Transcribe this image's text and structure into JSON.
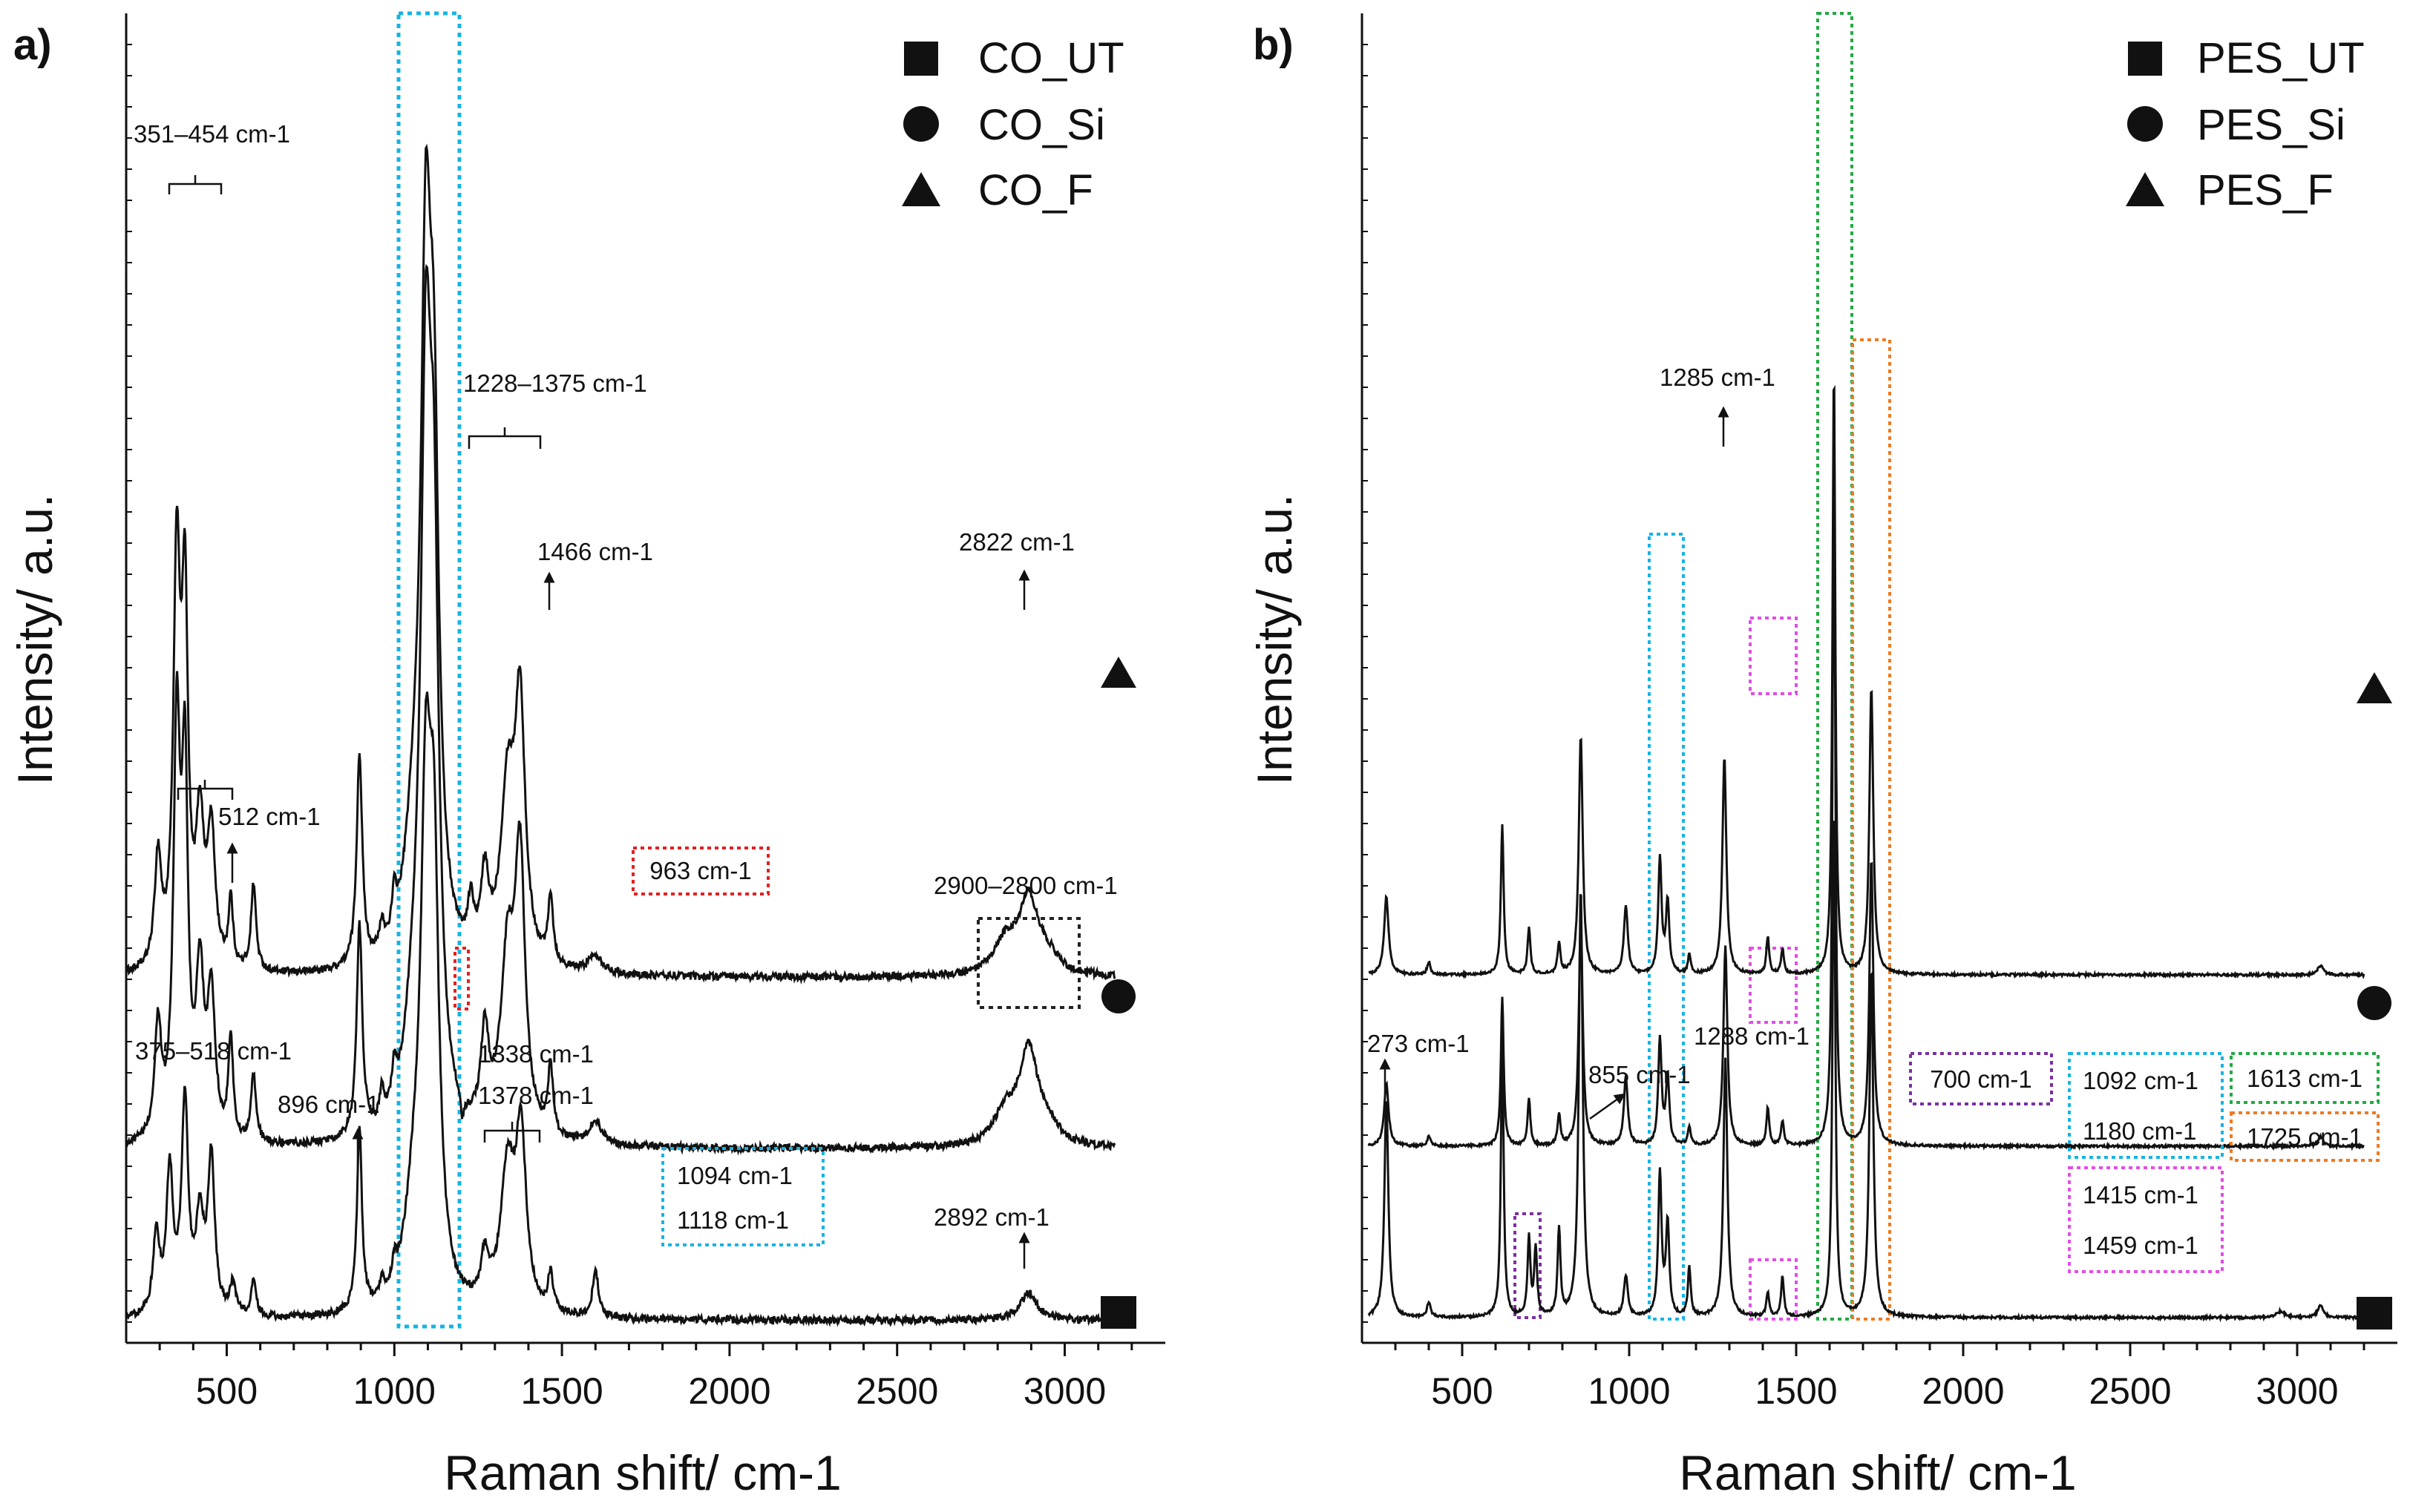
{
  "chart_data": [
    {
      "panel_label": "a)",
      "type": "line",
      "xlabel": "Raman shift/ cm-1",
      "ylabel": "Intensity/ a.u.",
      "xlim": [
        200,
        3300
      ],
      "x_ticks": [
        "500",
        "1000",
        "1500",
        "2000",
        "2500",
        "3000"
      ],
      "series": [
        {
          "name": "CO_F",
          "marker": "triangle",
          "offset": 1.1,
          "peaks": [
            [
              295,
              0.35,
              12
            ],
            [
              351,
              1.28,
              12
            ],
            [
              375,
              1.12,
              11
            ],
            [
              420,
              0.45,
              14
            ],
            [
              454,
              0.43,
              14
            ],
            [
              512,
              0.22,
              8
            ],
            [
              580,
              0.28,
              9
            ],
            [
              896,
              0.68,
              10
            ],
            [
              963,
              0.08,
              8
            ],
            [
              1000,
              0.12,
              8
            ],
            [
              1094,
              1.95,
              18
            ],
            [
              1118,
              1.4,
              18
            ],
            [
              1060,
              0.35,
              35
            ],
            [
              1228,
              0.15,
              10
            ],
            [
              1270,
              0.25,
              14
            ],
            [
              1338,
              0.55,
              25
            ],
            [
              1375,
              0.8,
              18
            ],
            [
              1466,
              0.22,
              9
            ],
            [
              1600,
              0.06,
              25
            ],
            [
              2822,
              0.1,
              40
            ],
            [
              2892,
              0.24,
              35
            ],
            [
              2950,
              0.05,
              40
            ]
          ]
        },
        {
          "name": "CO_Si",
          "marker": "circle",
          "offset": 0.55,
          "peaks": [
            [
              295,
              0.36,
              12
            ],
            [
              351,
              1.28,
              12
            ],
            [
              375,
              1.1,
              11
            ],
            [
              420,
              0.5,
              14
            ],
            [
              454,
              0.45,
              14
            ],
            [
              512,
              0.33,
              8
            ],
            [
              580,
              0.22,
              9
            ],
            [
              896,
              0.68,
              10
            ],
            [
              963,
              0.1,
              8
            ],
            [
              1000,
              0.12,
              8
            ],
            [
              1094,
              2.08,
              18
            ],
            [
              1118,
              1.55,
              18
            ],
            [
              1060,
              0.3,
              35
            ],
            [
              1203,
              -0.08,
              6
            ],
            [
              1270,
              0.3,
              14
            ],
            [
              1338,
              0.55,
              25
            ],
            [
              1375,
              0.85,
              18
            ],
            [
              1466,
              0.22,
              9
            ],
            [
              1600,
              0.07,
              25
            ],
            [
              2822,
              0.1,
              40
            ],
            [
              2892,
              0.3,
              35
            ],
            [
              2950,
              0.05,
              40
            ]
          ]
        },
        {
          "name": "CO_UT",
          "marker": "square",
          "offset": 0.0,
          "peaks": [
            [
              290,
              0.25,
              12
            ],
            [
              330,
              0.45,
              12
            ],
            [
              375,
              0.68,
              12
            ],
            [
              420,
              0.3,
              14
            ],
            [
              454,
              0.5,
              12
            ],
            [
              518,
              0.1,
              10
            ],
            [
              580,
              0.12,
              9
            ],
            [
              896,
              0.58,
              9
            ],
            [
              963,
              0.06,
              8
            ],
            [
              1000,
              0.07,
              8
            ],
            [
              1094,
              1.38,
              18
            ],
            [
              1118,
              1.22,
              18
            ],
            [
              1060,
              0.3,
              35
            ],
            [
              1270,
              0.15,
              14
            ],
            [
              1338,
              0.45,
              25
            ],
            [
              1378,
              0.55,
              18
            ],
            [
              1466,
              0.12,
              9
            ],
            [
              1600,
              0.15,
              10
            ],
            [
              2892,
              0.09,
              30
            ]
          ]
        }
      ],
      "legend": [
        {
          "marker": "square",
          "label": "CO_UT"
        },
        {
          "marker": "circle",
          "label": "CO_Si"
        },
        {
          "marker": "triangle",
          "label": "CO_F"
        }
      ],
      "annotations": [
        "351–454 cm-1",
        "1228–1375 cm-1",
        "1466 cm-1",
        "2822 cm-1",
        "512 cm-1",
        "963 cm-1",
        "2900–2800 cm-1",
        "375–518 cm-1",
        "896 cm-1",
        "1338 cm-1",
        "1378 cm-1",
        "1094 cm-1",
        "1118 cm-1",
        "2892 cm-1"
      ],
      "box_colors": {
        "cyan": "#16b4e3",
        "red": "#e32020",
        "black": "#222222"
      }
    },
    {
      "panel_label": "b)",
      "type": "line",
      "xlabel": "Raman shift/ cm-1",
      "ylabel": "Intensity/ a.u.",
      "xlim": [
        200,
        3300
      ],
      "x_ticks": [
        "500",
        "1000",
        "1500",
        "2000",
        "2500",
        "3000"
      ],
      "series": [
        {
          "name": "PES_F",
          "marker": "triangle",
          "offset": 1.1,
          "peaks": [
            [
              273,
              0.25,
              8
            ],
            [
              400,
              0.04,
              6
            ],
            [
              620,
              0.48,
              5
            ],
            [
              700,
              0.15,
              5
            ],
            [
              790,
              0.1,
              5
            ],
            [
              855,
              0.77,
              7
            ],
            [
              990,
              0.22,
              7
            ],
            [
              1092,
              0.37,
              6
            ],
            [
              1115,
              0.23,
              6
            ],
            [
              1180,
              0.06,
              5
            ],
            [
              1285,
              0.7,
              7
            ],
            [
              1415,
              0.12,
              5
            ],
            [
              1459,
              0.08,
              5
            ],
            [
              1613,
              1.95,
              5
            ],
            [
              1725,
              0.92,
              7
            ],
            [
              3070,
              0.03,
              10
            ]
          ]
        },
        {
          "name": "PES_Si",
          "marker": "circle",
          "offset": 0.55,
          "peaks": [
            [
              273,
              0.2,
              8
            ],
            [
              400,
              0.03,
              6
            ],
            [
              620,
              0.48,
              5
            ],
            [
              700,
              0.15,
              5
            ],
            [
              790,
              0.1,
              5
            ],
            [
              855,
              0.73,
              7
            ],
            [
              990,
              0.22,
              7
            ],
            [
              1092,
              0.34,
              6
            ],
            [
              1115,
              0.22,
              6
            ],
            [
              1180,
              0.06,
              5
            ],
            [
              1288,
              0.64,
              7
            ],
            [
              1415,
              0.12,
              5
            ],
            [
              1459,
              0.08,
              5
            ],
            [
              1613,
              2.2,
              5
            ],
            [
              1725,
              0.92,
              7
            ],
            [
              3070,
              0.03,
              10
            ]
          ]
        },
        {
          "name": "PES_UT",
          "marker": "square",
          "offset": 0.0,
          "peaks": [
            [
              273,
              0.7,
              7
            ],
            [
              400,
              0.05,
              6
            ],
            [
              620,
              0.88,
              5
            ],
            [
              700,
              0.25,
              5
            ],
            [
              720,
              0.22,
              5
            ],
            [
              790,
              0.28,
              5
            ],
            [
              855,
              1.38,
              7
            ],
            [
              990,
              0.13,
              7
            ],
            [
              1092,
              0.46,
              6
            ],
            [
              1115,
              0.3,
              6
            ],
            [
              1180,
              0.16,
              5
            ],
            [
              1288,
              0.83,
              7
            ],
            [
              1415,
              0.08,
              5
            ],
            [
              1459,
              0.13,
              5
            ],
            [
              1613,
              1.65,
              5
            ],
            [
              1725,
              1.12,
              7
            ],
            [
              2950,
              0.02,
              15
            ],
            [
              3070,
              0.04,
              10
            ]
          ]
        }
      ],
      "legend": [
        {
          "marker": "square",
          "label": "PES_UT"
        },
        {
          "marker": "circle",
          "label": "PES_Si"
        },
        {
          "marker": "triangle",
          "label": "PES_F"
        }
      ],
      "annotations": [
        "1285 cm-1",
        "273 cm-1",
        "855 cm-1",
        "1288 cm-1",
        "700 cm-1",
        "1092 cm-1",
        "1180 cm-1",
        "1613 cm-1",
        "1725 cm-1",
        "1415 cm-1",
        "1459 cm-1"
      ],
      "box_colors": {
        "cyan": "#16b4e3",
        "purple": "#7b2fa3",
        "pink": "#e24de6",
        "green": "#22aa44",
        "orange": "#ee7a22"
      }
    }
  ]
}
